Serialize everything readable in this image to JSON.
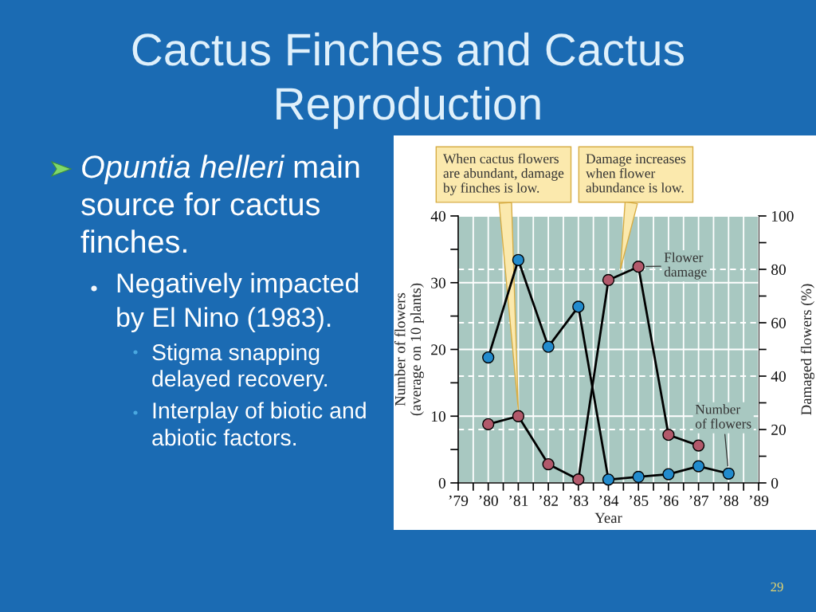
{
  "chart_data": {
    "type": "line",
    "title": "Cactus Finches and Cactus Reproduction",
    "xlabel": "Year",
    "ylabel": "Number of flowers (average on 10 plants)",
    "y2label": "Damaged flowers (%)",
    "annotations": [
      "Opuntia helleri main source for cactus finches.",
      "Negatively impacted by El Nino (1983).",
      "Stigma snapping delayed recovery.",
      "Interplay of biotic and abiotic factors.",
      {
        "text": "When cactus flowers are abundant, damage by finches is low.",
        "x": 1981,
        "y": 11
      },
      {
        "text": "Damage increases when flower abundance is low.",
        "x": 1984.4,
        "y": 32
      },
      "29"
    ],
    "series": [
      {
        "name": "Number of flowers",
        "color": "#228bcd",
        "x": [
          1980,
          1981,
          1982,
          1983,
          1984,
          1985,
          1986,
          1987,
          1988
        ],
        "values": [
          18.8,
          33.4,
          20.4,
          26.4,
          0.5,
          0.9,
          1.3,
          2.5,
          1.4
        ]
      },
      {
        "name": "Flower damage",
        "color": "#b2596b",
        "axis": "y2",
        "x": [
          1980,
          1981,
          1982,
          1983,
          1984,
          1985,
          1986,
          1987
        ],
        "values": [
          22,
          25,
          7,
          1.3,
          76,
          81,
          18,
          14
        ]
      }
    ],
    "xlim": [
      1979,
      1989
    ],
    "xticks": [
      {
        "value": 1979,
        "label": "’79"
      },
      {
        "value": 1979.5,
        "label": null
      },
      {
        "value": 1980,
        "label": "’80"
      },
      {
        "value": 1980.5,
        "label": null
      },
      {
        "value": 1981,
        "label": "’81"
      },
      {
        "value": 1981.5,
        "label": null
      },
      {
        "value": 1982,
        "label": "’82"
      },
      {
        "value": 1982.5,
        "label": null
      },
      {
        "value": 1983,
        "label": "’83"
      },
      {
        "value": 1983.5,
        "label": null
      },
      {
        "value": 1984,
        "label": "’84"
      },
      {
        "value": 1984.5,
        "label": null
      },
      {
        "value": 1985,
        "label": "’85"
      },
      {
        "value": 1985.5,
        "label": null
      },
      {
        "value": 1986,
        "label": "’86"
      },
      {
        "value": 1986.5,
        "label": null
      },
      {
        "value": 1987,
        "label": "’87"
      },
      {
        "value": 1987.5,
        "label": null
      },
      {
        "value": 1988,
        "label": "’88"
      },
      {
        "value": 1988.5,
        "label": null
      },
      {
        "value": 1989,
        "label": "’89"
      }
    ],
    "ylim": [
      0,
      40
    ],
    "yticks": [
      0,
      {
        "value": 5,
        "label": null
      },
      10,
      {
        "value": 15,
        "label": null
      },
      20,
      {
        "value": 25,
        "label": null
      },
      30,
      {
        "value": 35,
        "label": null
      },
      40
    ],
    "y2lim": [
      0,
      100
    ],
    "y2ticks": [
      0,
      {
        "value": 10,
        "label": null
      },
      20,
      {
        "value": 30,
        "label": null
      },
      40,
      {
        "value": 50,
        "label": null
      },
      60,
      {
        "value": 70,
        "label": null
      },
      80,
      {
        "value": 90,
        "label": null
      },
      100
    ],
    "grid": true,
    "marker": "circle",
    "line_style": "solid"
  }
}
